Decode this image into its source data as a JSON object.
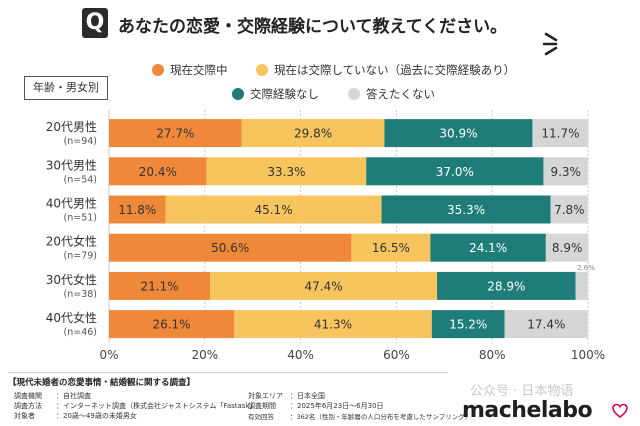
{
  "header": {
    "badge": "Q",
    "title": "あなたの恋愛・交際経験について教えてください。"
  },
  "group_label": "年齢・男女別",
  "colors": {
    "現在交際中": "#f0883a",
    "現在は交際していない（過去に交際経験あり）": "#f7c45e",
    "交際経験なし": "#1e7d79",
    "答えたくない": "#d6d6d6"
  },
  "chart_data": {
    "type": "bar",
    "orientation": "horizontal",
    "stacked": true,
    "title": "あなたの恋愛・交際経験について教えてください。",
    "categories": [
      {
        "name": "20代男性",
        "n": "(n=94)"
      },
      {
        "name": "30代男性",
        "n": "(n=54)"
      },
      {
        "name": "40代男性",
        "n": "(n=51)"
      },
      {
        "name": "20代女性",
        "n": "(n=79)"
      },
      {
        "name": "30代女性",
        "n": "(n=38)"
      },
      {
        "name": "40代女性",
        "n": "(n=46)"
      }
    ],
    "series": [
      {
        "name": "現在交際中",
        "values": [
          27.7,
          20.4,
          11.8,
          50.6,
          21.1,
          26.1
        ]
      },
      {
        "name": "現在は交際していない（過去に交際経験あり）",
        "values": [
          29.8,
          33.3,
          45.1,
          16.5,
          47.4,
          41.3
        ]
      },
      {
        "name": "交際経験なし",
        "values": [
          30.9,
          37.0,
          35.3,
          24.1,
          28.9,
          15.2
        ]
      },
      {
        "name": "答えたくない",
        "values": [
          11.7,
          9.3,
          7.8,
          8.9,
          2.6,
          17.4
        ]
      }
    ],
    "value_labels": [
      [
        "27.7%",
        "29.8%",
        "30.9%",
        "11.7%"
      ],
      [
        "20.4%",
        "33.3%",
        "37.0%",
        "9.3%"
      ],
      [
        "11.8%",
        "45.1%",
        "35.3%",
        "7.8%"
      ],
      [
        "50.6%",
        "16.5%",
        "24.1%",
        "8.9%"
      ],
      [
        "21.1%",
        "47.4%",
        "28.9%",
        "2.6%"
      ],
      [
        "26.1%",
        "41.3%",
        "15.2%",
        "17.4%"
      ]
    ],
    "xticks": [
      "0%",
      "20%",
      "40%",
      "60%",
      "80%",
      "100%"
    ],
    "xlim": [
      0,
      100
    ],
    "grid": true,
    "legend_position": "top"
  },
  "footer": {
    "title": "【現代未婚者の恋愛事情・結婚観に関する調査】",
    "left": [
      {
        "k": "調査機関",
        "v": "：自社調査"
      },
      {
        "k": "調査方法",
        "v": "：インターネット調査（株式会社ジャストシステム「Fastask」"
      },
      {
        "k": "対象者",
        "v": "：20歳〜49歳の未婚男女"
      }
    ],
    "right": [
      {
        "k": "対象エリア",
        "v": "：日本全国"
      },
      {
        "k": "調査期間",
        "v": "：2025年6月23日〜6月30日"
      },
      {
        "k": "有効回答",
        "v": "：362名（性別・年齢層の人口分布を考慮したサンプリング）"
      }
    ]
  },
  "watermark": "公众号 · 日本物语",
  "logo": "machelabo"
}
